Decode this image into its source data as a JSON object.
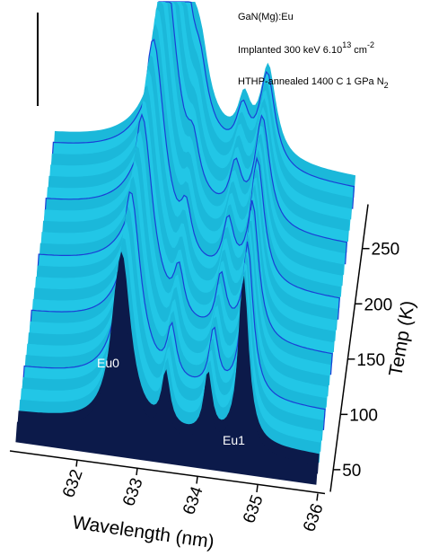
{
  "chart_data": {
    "type": "surface3d",
    "annotations": {
      "sample": "GaN(Mg):Eu",
      "implant": "Implanted 300 keV 6.10",
      "implant_exp": "13",
      "implant_unit": " cm",
      "implant_unit_exp": "-2",
      "anneal": "HTHP-annealed 1400 C 1 GPa N",
      "anneal_sub": "2",
      "peak0": "Eu0",
      "peak1": "Eu1"
    },
    "x_label": "Wavelength (nm)",
    "y_label": "Temp (K)",
    "xlim": [
      631,
      636
    ],
    "xticks": [
      632,
      633,
      634,
      635,
      636
    ],
    "ylim": [
      30,
      290
    ],
    "yticks": [
      50,
      100,
      150,
      200,
      250
    ]
  }
}
